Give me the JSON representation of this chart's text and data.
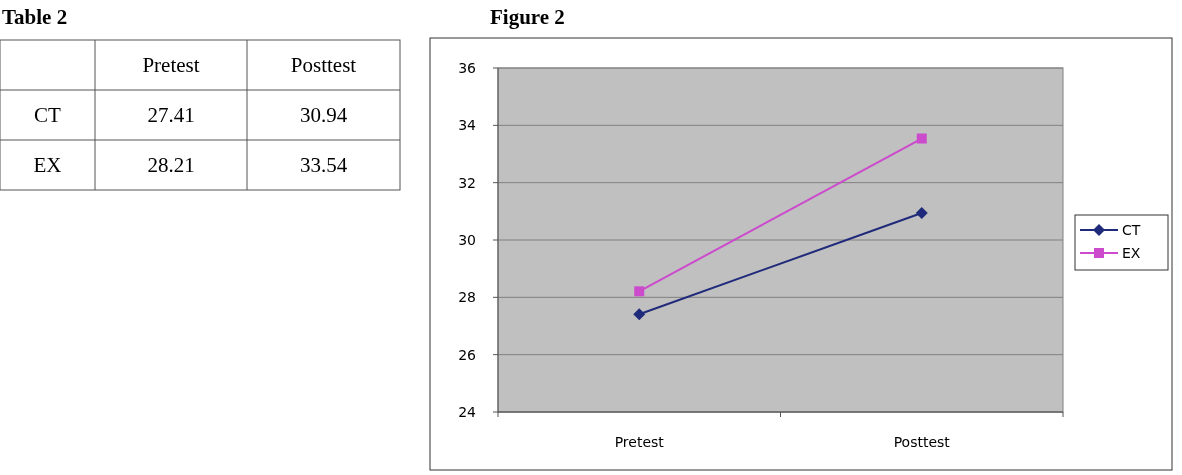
{
  "chart_data": [
    {
      "type": "heatmap",
      "title": "Table 2",
      "categories": [
        "Pretest",
        "Posttest"
      ],
      "y_categories": [
        "CT",
        "EX"
      ],
      "cells": [
        [
          27.41,
          30.94
        ],
        [
          28.21,
          33.54
        ]
      ],
      "data_labels": true
    },
    {
      "type": "line",
      "title": "Figure 2",
      "categories": [
        "Pretest",
        "Posttest"
      ],
      "series": [
        {
          "name": "CT",
          "color": "#1f2a7a",
          "marker": "diamond",
          "values": [
            27.41,
            30.94
          ]
        },
        {
          "name": "EX",
          "color": "#cc4acc",
          "marker": "square",
          "values": [
            28.21,
            33.54
          ]
        }
      ],
      "ylim": [
        24,
        36
      ],
      "yticks": [
        24,
        26,
        28,
        30,
        32,
        34,
        36
      ],
      "grid": "y",
      "legend": "right"
    }
  ]
}
